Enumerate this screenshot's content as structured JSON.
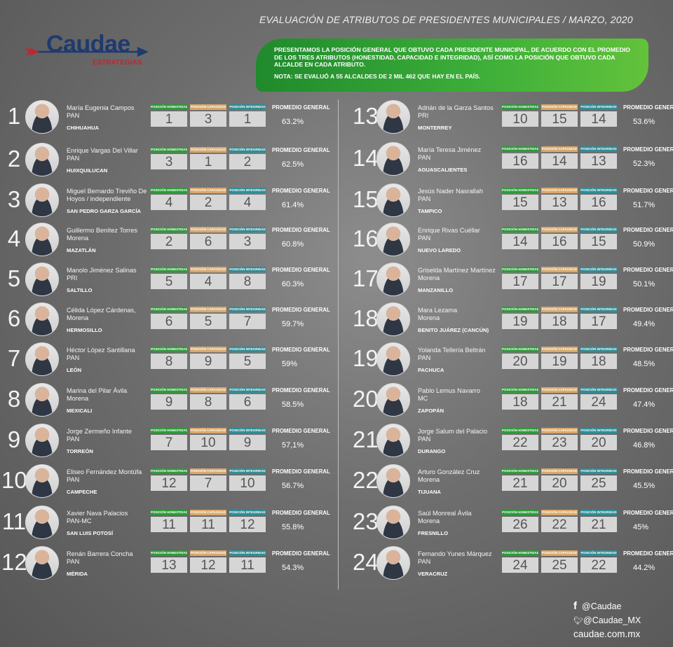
{
  "header": {
    "title": "EVALUACIÓN DE ATRIBUTOS DE PRESIDENTES MUNICIPALES / MARZO, 2020"
  },
  "logo": {
    "word": "Caudae",
    "sub": "ESTRATEGIAS"
  },
  "intro": {
    "text": "PRESENTAMOS LA POSICIÓN GENERAL QUE OBTUVO CADA PRESIDENTE MUNICIPAL, DE ACUERDO CON EL PROMEDIO DE LOS TRES ATRIBUTOS (HONESTIDAD, CAPACIDAD E INTEGRIDAD), ASÍ COMO LA POSICIÓN QUE OBTUVO CADA ALCALDE EN CADA ATRIBUTO.",
    "note": "NOTA: SE EVALUÓ A 55 ALCALDES DE 2 MIL 462 QUE HAY EN EL PAÍS."
  },
  "labels": {
    "honestidad": "POSICIÓN HONESTIDAD",
    "capacidad": "POSICIÓN CAPACIDAD",
    "integridad": "POSICIÓN INTEGRIDAD",
    "promedio": "PROMEDIO GENERAL"
  },
  "mayors": [
    {
      "rank": "1",
      "name": "María Eugenia Campos",
      "party": "PAN",
      "city": "CHIHUAHUA",
      "h": "1",
      "c": "3",
      "i": "1",
      "avg": "63.2%"
    },
    {
      "rank": "2",
      "name": "Enrique Vargas Del Villar",
      "party": "PAN",
      "city": "HUIXQUILUCAN",
      "h": "3",
      "c": "1",
      "i": "2",
      "avg": "62.5%"
    },
    {
      "rank": "3",
      "name": "Miguel Bernardo Treviño De Hoyos / independiente",
      "party": "",
      "city": "SAN PEDRO GARZA GARCÍA",
      "h": "4",
      "c": "2",
      "i": "4",
      "avg": "61.4%"
    },
    {
      "rank": "4",
      "name": "Guillermo Benítez Torres",
      "party": "Morena",
      "city": "MAZATLÁN",
      "h": "2",
      "c": "6",
      "i": "3",
      "avg": "60.8%"
    },
    {
      "rank": "5",
      "name": "Manolo Jiménez Salinas",
      "party": "PRI",
      "city": "SALTILLO",
      "h": "5",
      "c": "4",
      "i": "8",
      "avg": "60.3%"
    },
    {
      "rank": "6",
      "name": "Célida López Cárdenas,",
      "party": "Morena",
      "city": "HERMOSILLO",
      "h": "6",
      "c": "5",
      "i": "7",
      "avg": "59.7%"
    },
    {
      "rank": "7",
      "name": "Héctor López Santillana",
      "party": "PAN",
      "city": "LEÓN",
      "h": "8",
      "c": "9",
      "i": "5",
      "avg": "59%"
    },
    {
      "rank": "8",
      "name": "Marina del Pilar Ávila",
      "party": "Morena",
      "city": "MEXICALI",
      "h": "9",
      "c": "8",
      "i": "6",
      "avg": "58.5%"
    },
    {
      "rank": "9",
      "name": "Jorge Zermeño Infante",
      "party": "PAN",
      "city": "TORREÓN",
      "h": "7",
      "c": "10",
      "i": "9",
      "avg": "57,1%"
    },
    {
      "rank": "10",
      "name": "Eliseo Fernández Montúfa",
      "party": "PAN",
      "city": "CAMPECHE",
      "h": "12",
      "c": "7",
      "i": "10",
      "avg": "56.7%"
    },
    {
      "rank": "11",
      "name": "Xavier Nava Palacios",
      "party": "PAN-MC",
      "city": "SAN LUIS POTOSÍ",
      "h": "11",
      "c": "11",
      "i": "12",
      "avg": "55.8%"
    },
    {
      "rank": "12",
      "name": "Renán Barrera Concha",
      "party": "PAN",
      "city": "MÉRIDA",
      "h": "13",
      "c": "12",
      "i": "11",
      "avg": "54.3%"
    },
    {
      "rank": "13",
      "name": "Adrián de la Garza Santos",
      "party": "PRI",
      "city": "MONTERREY",
      "h": "10",
      "c": "15",
      "i": "14",
      "avg": "53.6%"
    },
    {
      "rank": "14",
      "name": "María Teresa Jiménez",
      "party": "PAN",
      "city": "AGUASCALIENTES",
      "h": "16",
      "c": "14",
      "i": "13",
      "avg": "52.3%"
    },
    {
      "rank": "15",
      "name": "Jesús Nader Nasrallah",
      "party": "PAN",
      "city": "TAMPICO",
      "h": "15",
      "c": "13",
      "i": "16",
      "avg": "51.7%"
    },
    {
      "rank": "16",
      "name": "Enrique Rivas Cuéllar",
      "party": "PAN",
      "city": "NUEVO LAREDO",
      "h": "14",
      "c": "16",
      "i": "15",
      "avg": "50.9%"
    },
    {
      "rank": "17",
      "name": "Griselda Martínez Martínez",
      "party": "Morena",
      "city": "MANZANILLO",
      "h": "17",
      "c": "17",
      "i": "19",
      "avg": "50.1%"
    },
    {
      "rank": "18",
      "name": "Mara Lezama",
      "party": "Morena",
      "city": "BENITO JUÁREZ (CANCÚN)",
      "h": "19",
      "c": "18",
      "i": "17",
      "avg": "49.4%"
    },
    {
      "rank": "19",
      "name": "Yolanda Tellería Beltrán",
      "party": "PAN",
      "city": "PACHUCA",
      "h": "20",
      "c": "19",
      "i": "18",
      "avg": "48.5%"
    },
    {
      "rank": "20",
      "name": "Pablo Lemus Navarro",
      "party": "MC",
      "city": "ZAPOPÁN",
      "h": "18",
      "c": "21",
      "i": "24",
      "avg": "47.4%"
    },
    {
      "rank": "21",
      "name": "Jorge Salum del Palacio",
      "party": "PAN",
      "city": "DURANGO",
      "h": "22",
      "c": "23",
      "i": "20",
      "avg": "46.8%"
    },
    {
      "rank": "22",
      "name": "Arturo González Cruz",
      "party": "Morena",
      "city": "TIJUANA",
      "h": "21",
      "c": "20",
      "i": "25",
      "avg": "45.5%"
    },
    {
      "rank": "23",
      "name": "Saúl Monreal Ávila",
      "party": "Morena",
      "city": "FRESNILLO",
      "h": "26",
      "c": "22",
      "i": "21",
      "avg": "45%"
    },
    {
      "rank": "24",
      "name": "Fernando Yunes Márquez",
      "party": "PAN",
      "city": "VERACRUZ",
      "h": "24",
      "c": "25",
      "i": "22",
      "avg": "44.2%"
    }
  ],
  "footer": {
    "facebook": "@Caudae",
    "twitter": "@Caudae_MX",
    "site": "caudae.com.mx"
  },
  "colors": {
    "green": "#2e9a3a",
    "orange": "#d8a86a",
    "teal": "#2f8d96",
    "logo_blue": "#1f3a70",
    "logo_red": "#c0262e"
  }
}
